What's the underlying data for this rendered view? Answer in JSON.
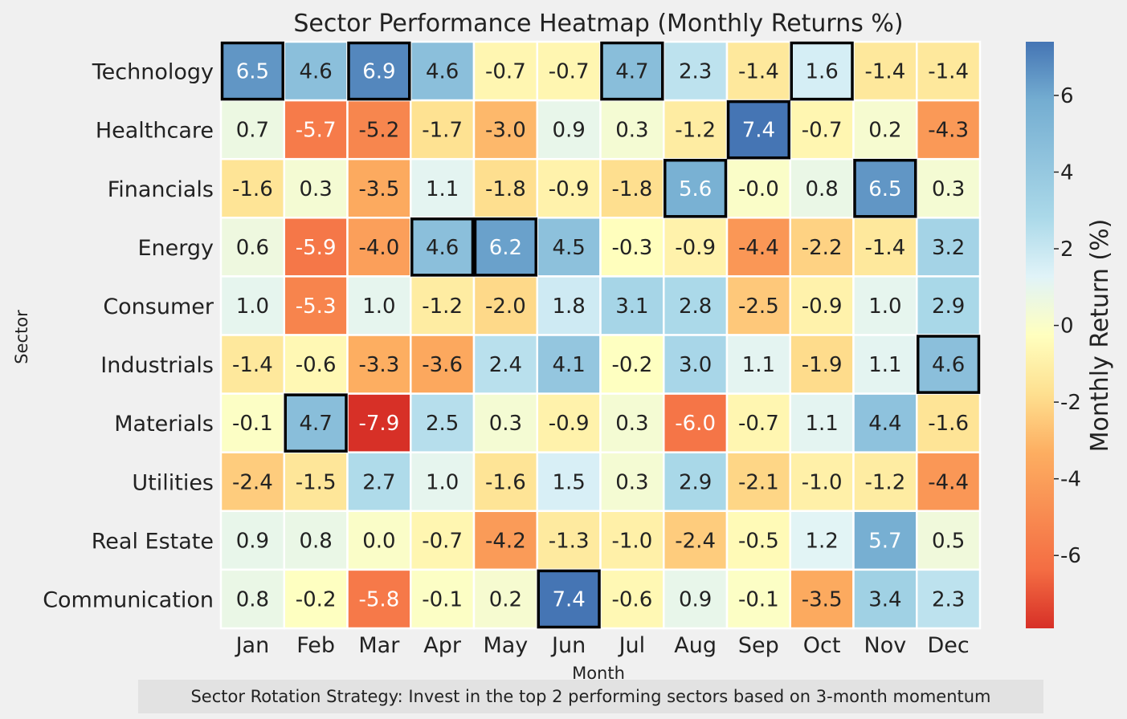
{
  "chart_data": {
    "type": "heatmap",
    "title": "Sector Performance Heatmap (Monthly Returns %)",
    "xlabel": "Month",
    "ylabel": "Sector",
    "months": [
      "Jan",
      "Feb",
      "Mar",
      "Apr",
      "May",
      "Jun",
      "Jul",
      "Aug",
      "Sep",
      "Oct",
      "Nov",
      "Dec"
    ],
    "sectors": [
      "Technology",
      "Healthcare",
      "Financials",
      "Energy",
      "Consumer",
      "Industrials",
      "Materials",
      "Utilities",
      "Real Estate",
      "Communication"
    ],
    "values": [
      [
        6.5,
        4.6,
        6.9,
        4.6,
        -0.7,
        -0.7,
        4.7,
        2.3,
        -1.4,
        1.6,
        -1.4,
        -1.4
      ],
      [
        0.7,
        -5.7,
        -5.2,
        -1.7,
        -3.0,
        0.9,
        0.3,
        -1.2,
        7.4,
        -0.7,
        0.2,
        -4.3
      ],
      [
        -1.6,
        0.3,
        -3.5,
        1.1,
        -1.8,
        -0.9,
        -1.8,
        5.6,
        -0.0,
        0.8,
        6.5,
        0.3
      ],
      [
        0.6,
        -5.9,
        -4.0,
        4.6,
        6.2,
        4.5,
        -0.3,
        -0.9,
        -4.4,
        -2.2,
        -1.4,
        3.2
      ],
      [
        1.0,
        -5.3,
        1.0,
        -1.2,
        -2.0,
        1.8,
        3.1,
        2.8,
        -2.5,
        -0.9,
        1.0,
        2.9
      ],
      [
        -1.4,
        -0.6,
        -3.3,
        -3.6,
        2.4,
        4.1,
        -0.2,
        3.0,
        1.1,
        -1.9,
        1.1,
        4.6
      ],
      [
        -0.1,
        4.7,
        -7.9,
        2.5,
        0.3,
        -0.9,
        0.3,
        -6.0,
        -0.7,
        1.1,
        4.4,
        -1.6
      ],
      [
        -2.4,
        -1.5,
        2.7,
        1.0,
        -1.6,
        1.5,
        0.3,
        2.9,
        -2.1,
        -1.0,
        -1.2,
        -4.4
      ],
      [
        0.9,
        0.8,
        0.0,
        -0.7,
        -4.2,
        -1.3,
        -1.0,
        -2.4,
        -0.5,
        1.2,
        5.7,
        0.5
      ],
      [
        0.8,
        -0.2,
        -5.8,
        -0.1,
        0.2,
        7.4,
        -0.6,
        0.9,
        -0.1,
        -3.5,
        3.4,
        2.3
      ]
    ],
    "value_labels": [
      [
        "6.5",
        "4.6",
        "6.9",
        "4.6",
        "-0.7",
        "-0.7",
        "4.7",
        "2.3",
        "-1.4",
        "1.6",
        "-1.4",
        "-1.4"
      ],
      [
        "0.7",
        "-5.7",
        "-5.2",
        "-1.7",
        "-3.0",
        "0.9",
        "0.3",
        "-1.2",
        "7.4",
        "-0.7",
        "0.2",
        "-4.3"
      ],
      [
        "-1.6",
        "0.3",
        "-3.5",
        "1.1",
        "-1.8",
        "-0.9",
        "-1.8",
        "5.6",
        "-0.0",
        "0.8",
        "6.5",
        "0.3"
      ],
      [
        "0.6",
        "-5.9",
        "-4.0",
        "4.6",
        "6.2",
        "4.5",
        "-0.3",
        "-0.9",
        "-4.4",
        "-2.2",
        "-1.4",
        "3.2"
      ],
      [
        "1.0",
        "-5.3",
        "1.0",
        "-1.2",
        "-2.0",
        "1.8",
        "3.1",
        "2.8",
        "-2.5",
        "-0.9",
        "1.0",
        "2.9"
      ],
      [
        "-1.4",
        "-0.6",
        "-3.3",
        "-3.6",
        "2.4",
        "4.1",
        "-0.2",
        "3.0",
        "1.1",
        "-1.9",
        "1.1",
        "4.6"
      ],
      [
        "-0.1",
        "4.7",
        "-7.9",
        "2.5",
        "0.3",
        "-0.9",
        "0.3",
        "-6.0",
        "-0.7",
        "1.1",
        "4.4",
        "-1.6"
      ],
      [
        "-2.4",
        "-1.5",
        "2.7",
        "1.0",
        "-1.6",
        "1.5",
        "0.3",
        "2.9",
        "-2.1",
        "-1.0",
        "-1.2",
        "-4.4"
      ],
      [
        "0.9",
        "0.8",
        "0.0",
        "-0.7",
        "-4.2",
        "-1.3",
        "-1.0",
        "-2.4",
        "-0.5",
        "1.2",
        "5.7",
        "0.5"
      ],
      [
        "0.8",
        "-0.2",
        "-5.8",
        "-0.1",
        "0.2",
        "7.4",
        "-0.6",
        "0.9",
        "-0.1",
        "-3.5",
        "3.4",
        "2.3"
      ]
    ],
    "highlighted_cells": [
      [
        "Technology",
        "Jan"
      ],
      [
        "Technology",
        "Mar"
      ],
      [
        "Technology",
        "Jul"
      ],
      [
        "Technology",
        "Oct"
      ],
      [
        "Healthcare",
        "Sep"
      ],
      [
        "Financials",
        "Aug"
      ],
      [
        "Financials",
        "Nov"
      ],
      [
        "Energy",
        "Apr"
      ],
      [
        "Energy",
        "May"
      ],
      [
        "Industrials",
        "Dec"
      ],
      [
        "Materials",
        "Feb"
      ],
      [
        "Communication",
        "Jun"
      ]
    ],
    "highlight_color": "#000000",
    "colormap": "RdYlBu",
    "value_range": [
      -7.9,
      7.4
    ],
    "colorbar": {
      "label": "Monthly Return (%)",
      "ticks": [
        -6,
        -4,
        -2,
        0,
        2,
        4,
        6
      ],
      "tick_labels": [
        "-6",
        "-4",
        "-2",
        "0",
        "2",
        "4",
        "6"
      ]
    }
  },
  "annotation": {
    "text": "Sector Rotation Strategy: Invest in the top 2 performing sectors based on 3-month momentum"
  }
}
